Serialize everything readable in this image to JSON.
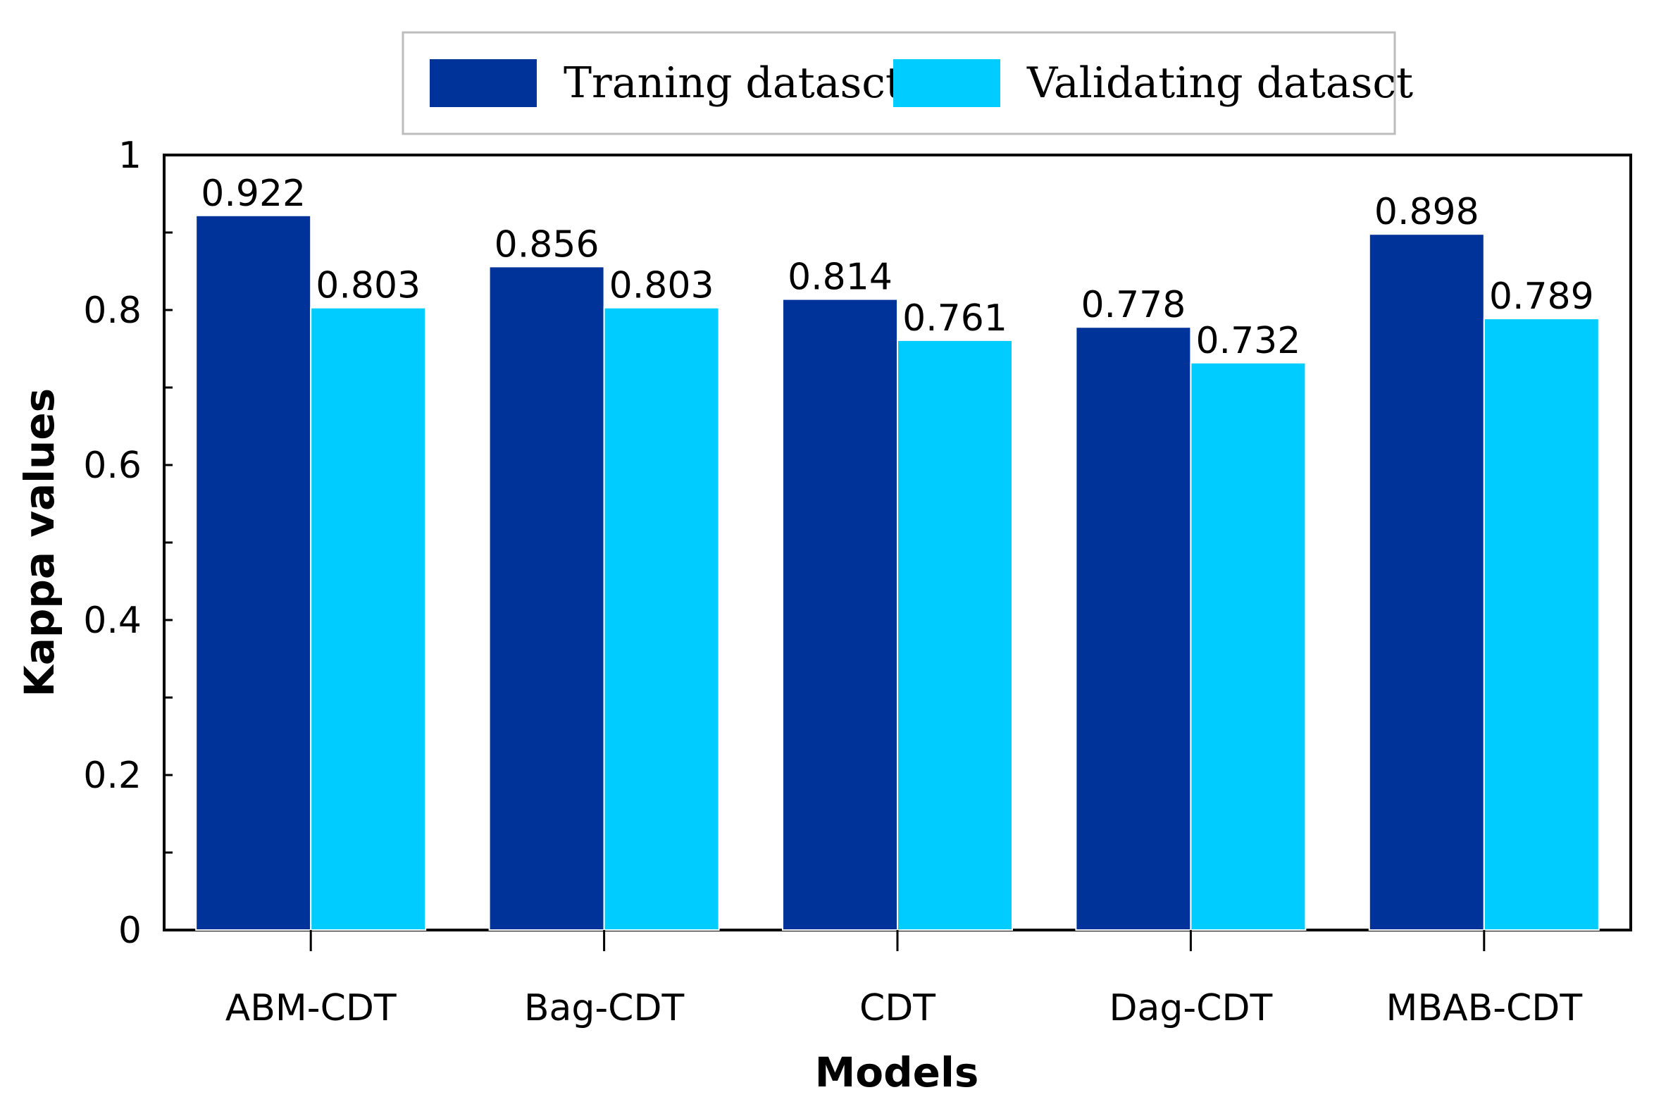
{
  "chart_data": {
    "type": "bar",
    "title": "",
    "xlabel": "Models",
    "ylabel": "Kappa values",
    "categories": [
      "ABM-CDT",
      "Bag-CDT",
      "CDT",
      "Dag-CDT",
      "MBAB-CDT"
    ],
    "series": [
      {
        "name": "Traning datasct",
        "color": "#003399",
        "values": [
          0.922,
          0.856,
          0.814,
          0.778,
          0.898
        ],
        "labels": [
          "0.922",
          "0.856",
          "0.814",
          "0.778",
          "0.898"
        ]
      },
      {
        "name": "Validating datasct",
        "color": "#00CCFF",
        "values": [
          0.803,
          0.803,
          0.761,
          0.732,
          0.789
        ],
        "labels": [
          "0.803",
          "0.803",
          "0.761",
          "0.732",
          "0.789"
        ]
      }
    ],
    "ylim": [
      0,
      1
    ],
    "yticks": [
      0,
      0.2,
      0.4,
      0.6,
      0.8,
      1
    ],
    "ytick_labels": [
      "0",
      "0.2",
      "0.4",
      "0.6",
      "0.8",
      "1"
    ],
    "legend_position": "top-center",
    "grid": false
  }
}
